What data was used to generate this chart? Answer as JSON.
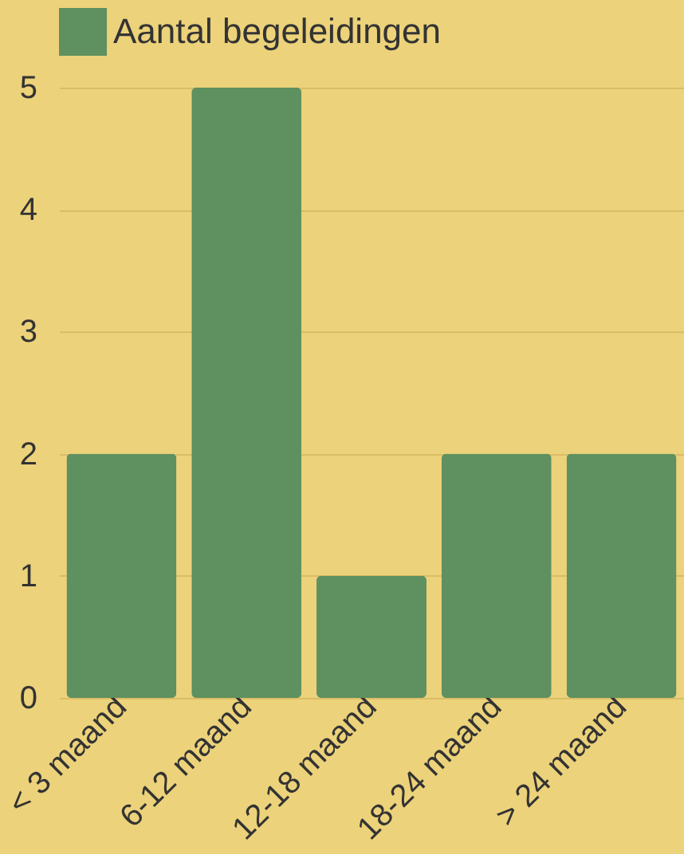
{
  "chart_data": {
    "type": "bar",
    "categories": [
      "< 3 maand",
      "6-12 maand",
      "12-18 maand",
      "18-24 maand",
      "> 24 maand"
    ],
    "series": [
      {
        "name": "Aantal begeleidingen",
        "color": "#5e9060",
        "values": [
          2,
          5,
          1,
          2,
          2
        ]
      }
    ],
    "ylim": [
      0,
      5
    ],
    "yticks": [
      0,
      1,
      2,
      3,
      4,
      5
    ],
    "grid": "y",
    "legend": "top"
  }
}
